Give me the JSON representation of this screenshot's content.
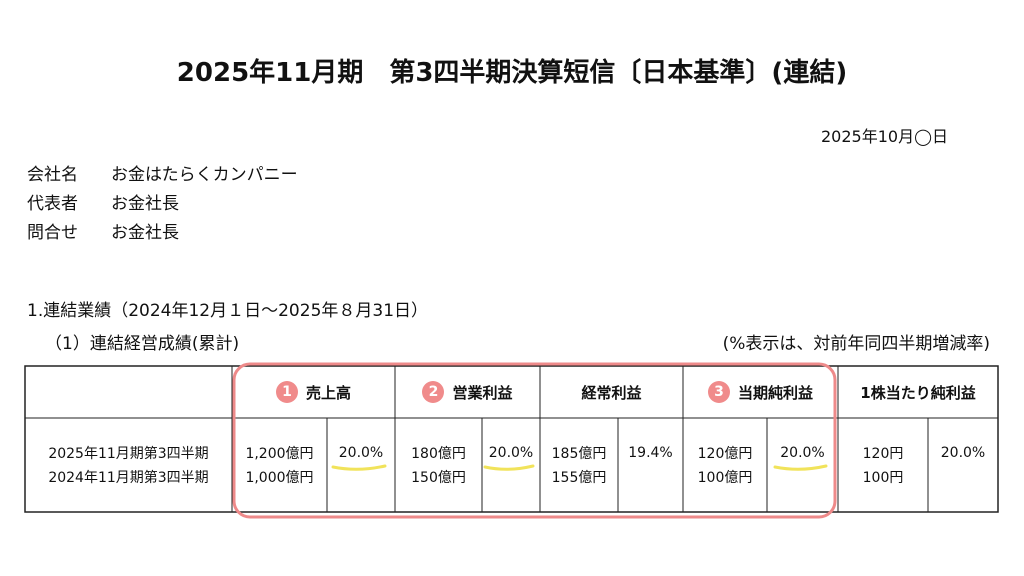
{
  "header": {
    "title": "2025年11月期　第3四半期決算短信〔日本基準〕(連結)",
    "date": "2025年10月◯日"
  },
  "company": [
    [
      "会社名",
      "お金はたらくカンパニー"
    ],
    [
      "代表者",
      "お金社長"
    ],
    [
      "問合せ",
      "お金社長"
    ]
  ],
  "section": {
    "heading": "1.連結業績（2024年12月１日～2025年８月31日）",
    "subheading": "（1）連結経営成績(累計)",
    "note": "(%表示は、対前年同四半期増減率)"
  },
  "table": {
    "headers": [
      {
        "badge": "1",
        "label": "売上高"
      },
      {
        "badge": "2",
        "label": "営業利益"
      },
      {
        "label": "経常利益"
      },
      {
        "badge": "3",
        "label": "当期純利益"
      },
      {
        "label": "1株当たり純利益"
      }
    ],
    "period_labels": [
      "2025年11月期第3四半期",
      "2024年11月期第3四半期"
    ],
    "cells": [
      {
        "amounts": [
          "1,200億円",
          "1,000億円"
        ],
        "rate": "20.0%"
      },
      {
        "amounts": [
          "180億円",
          "150億円"
        ],
        "rate": "20.0%"
      },
      {
        "amounts": [
          "185億円",
          "155億円"
        ],
        "rate": "19.4%"
      },
      {
        "amounts": [
          "120億円",
          "100億円"
        ],
        "rate": "20.0%"
      },
      {
        "amounts": [
          "120円",
          "100円"
        ],
        "rate": "20.0%"
      }
    ]
  }
}
